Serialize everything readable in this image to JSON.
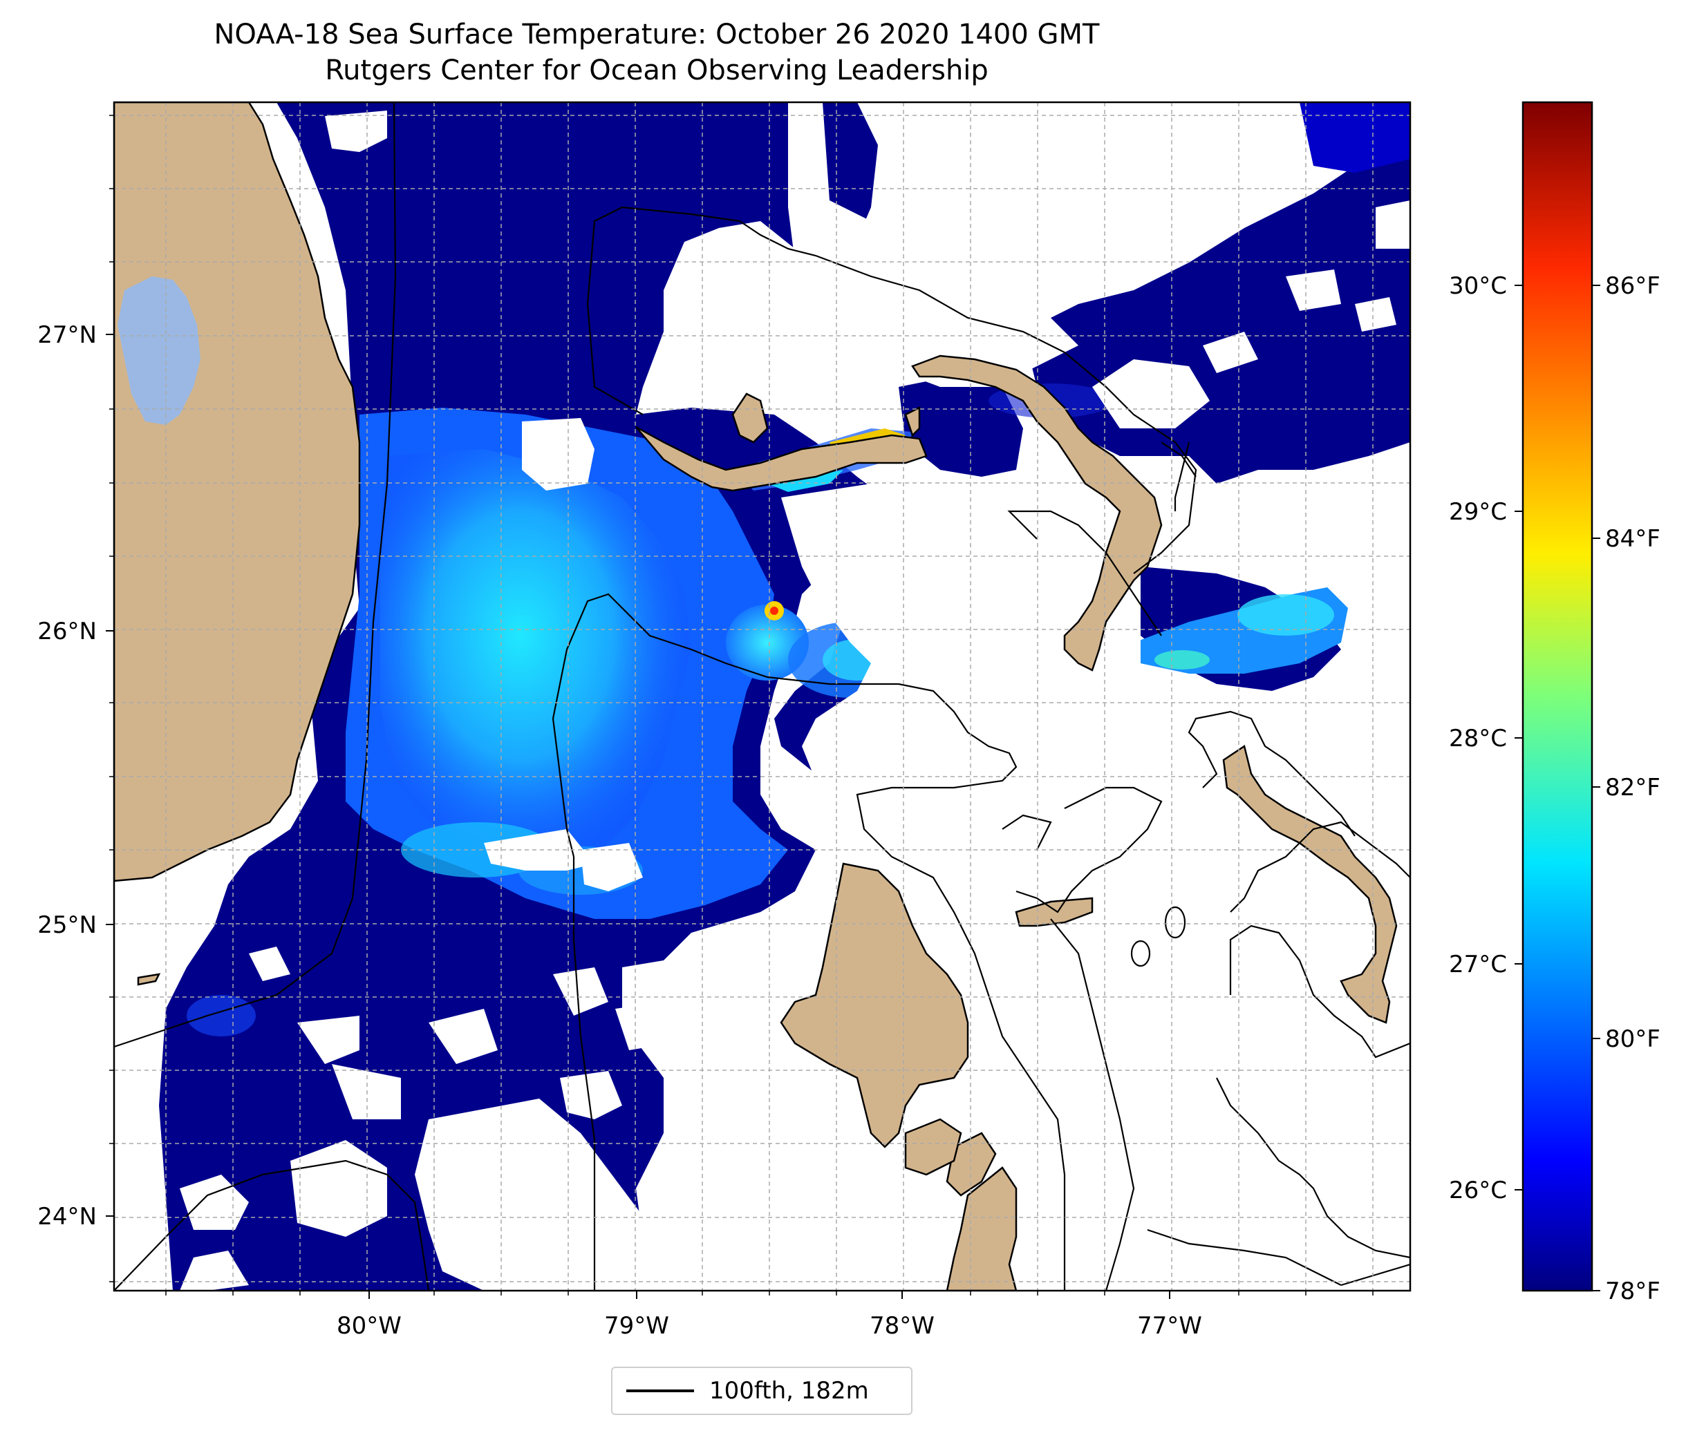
{
  "title": "NOAA-18 Sea Surface Temperature: October 26 2020 1400 GMT",
  "subtitle": "Rutgers Center for Ocean Observing Leadership",
  "map": {
    "lon_range": [
      -80.95,
      -76.1
    ],
    "lat_range": [
      23.75,
      27.8
    ],
    "x_ticks": [
      "80°W",
      "79°W",
      "78°W",
      "77°W"
    ],
    "x_tick_values": [
      -80,
      -79,
      -78,
      -77
    ],
    "y_ticks": [
      "27°N",
      "26°N",
      "25°N",
      "24°N"
    ],
    "y_tick_values": [
      27,
      26,
      25,
      24
    ],
    "grid": true,
    "colors": {
      "land": "#d2b48c",
      "lake": "#9ab8e3",
      "cloud": "#ffffff",
      "sst_cold": "#00008b",
      "sst_mid": "#1e90ff",
      "sst_warm": "#00e5ff"
    }
  },
  "colorbar": {
    "colormap": "jet",
    "celsius_ticks": [
      "30°C",
      "29°C",
      "28°C",
      "27°C",
      "26°C"
    ],
    "celsius_values": [
      30,
      29,
      28,
      27,
      26
    ],
    "fahrenheit_ticks": [
      "86°F",
      "84°F",
      "82°F",
      "80°F",
      "78°F"
    ],
    "fahrenheit_values": [
      86,
      84,
      82,
      80,
      78
    ],
    "range_f": [
      78,
      88
    ]
  },
  "legend": {
    "label": "100fth, 182m"
  }
}
